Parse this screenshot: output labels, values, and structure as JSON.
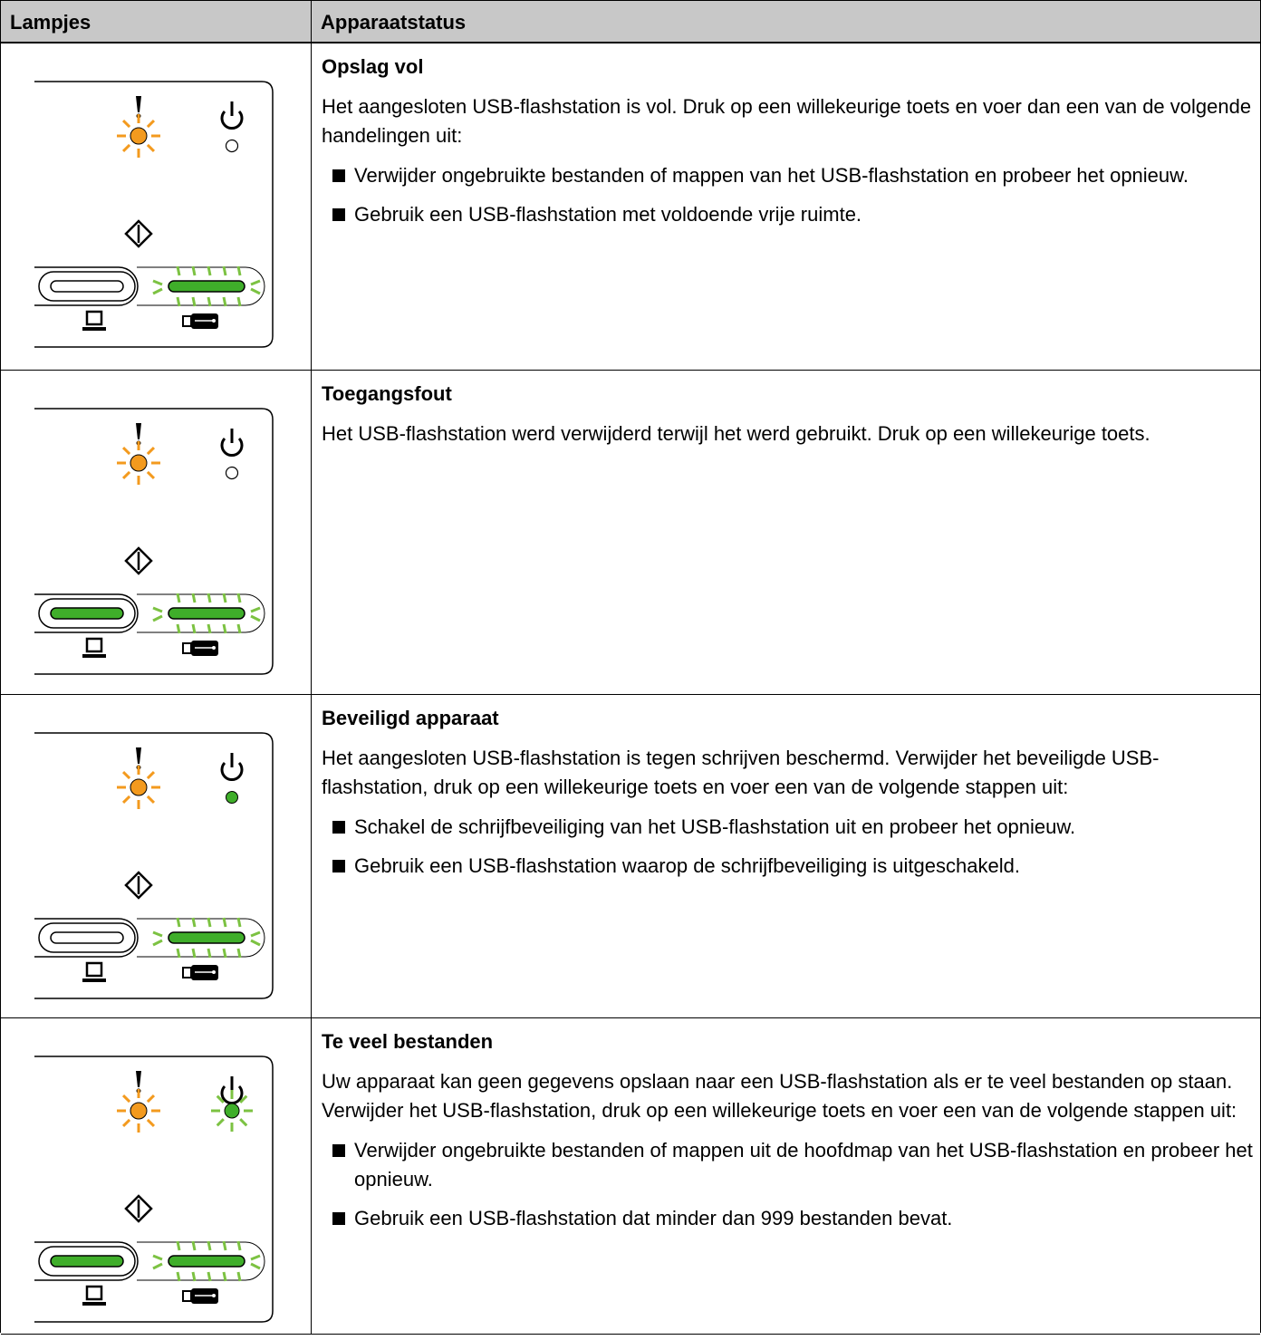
{
  "table": {
    "header": [
      "Lampjes",
      "Apparaatstatus"
    ],
    "rows": [
      {
        "title": "Opslag vol",
        "text": "Het aangesloten USB-flashstation is vol. Druk op een willekeurige toets en voer dan een van de volgende handelingen uit:",
        "bullets": [
          "Verwijder ongebruikte bestanden of mappen van het USB-flashstation en probeer het opnieuw.",
          "Gebruik een USB-flashstation met voldoende vrije ruimte."
        ]
      },
      {
        "title": "Toegangsfout",
        "text": "Het USB-flashstation werd verwijderd terwijl het werd gebruikt. Druk op een willekeurige toets.",
        "bullets": []
      },
      {
        "title": "Beveiligd apparaat",
        "text": "Het aangesloten USB-flashstation is tegen schrijven beschermd. Verwijder het beveiligde USB-flashstation, druk op een willekeurige toets en voer een van de volgende stappen uit:",
        "bullets": [
          "Schakel de schrijfbeveiliging van het USB-flashstation uit en probeer het opnieuw.",
          "Gebruik een USB-flashstation waarop de schrijfbeveiliging is uitgeschakeld."
        ]
      },
      {
        "title": "Te veel bestanden",
        "text": "Uw apparaat kan geen gegevens opslaan naar een USB-flashstation als er te veel bestanden op staan. Verwijder het USB-flashstation, druk op een willekeurige toets en voer een van de volgende stappen uit:",
        "bullets": [
          "Verwijder ongebruikte bestanden of mappen uit de hoofdmap van het USB-flashstation en probeer het opnieuw.",
          "Gebruik een USB-flashstation dat minder dan 999 bestanden bevat."
        ]
      }
    ]
  }
}
